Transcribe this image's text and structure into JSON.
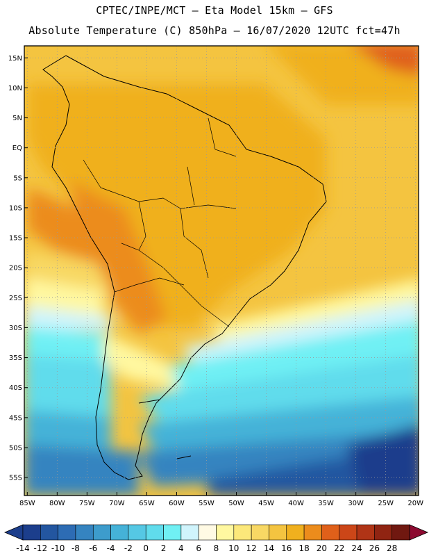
{
  "header": {
    "line1": "CPTEC/INPE/MCT –  Eta Model 15km – GFS",
    "line2": "Absolute Temperature (C) 850hPa – 16/07/2020 12UTC fct=47h"
  },
  "map": {
    "region": "South America",
    "variable": "Absolute Temperature (C) 850hPa",
    "lat_labels": [
      "15N",
      "10N",
      "5N",
      "EQ",
      "5S",
      "10S",
      "15S",
      "20S",
      "25S",
      "30S",
      "35S",
      "40S",
      "45S",
      "50S",
      "55S"
    ],
    "lat_values": [
      15,
      10,
      5,
      0,
      -5,
      -10,
      -15,
      -20,
      -25,
      -30,
      -35,
      -40,
      -45,
      -50,
      -55
    ],
    "lon_labels": [
      "85W",
      "80W",
      "75W",
      "70W",
      "65W",
      "60W",
      "55W",
      "50W",
      "45W",
      "40W",
      "35W",
      "30W",
      "25W",
      "20W"
    ],
    "lon_values": [
      -85,
      -80,
      -75,
      -70,
      -65,
      -60,
      -55,
      -50,
      -45,
      -40,
      -35,
      -30,
      -25,
      -20
    ],
    "lon_range": [
      -85.5,
      -19.5
    ],
    "lat_range": [
      -58,
      17
    ]
  },
  "colorbar": {
    "labels": [
      "-14",
      "-12",
      "-10",
      "-8",
      "-6",
      "-4",
      "-2",
      "0",
      "2",
      "4",
      "6",
      "8",
      "10",
      "12",
      "14",
      "16",
      "18",
      "20",
      "22",
      "24",
      "26",
      "28"
    ],
    "colors": [
      "#5a0a28",
      "#1c3e8c",
      "#2356a0",
      "#2d6cb4",
      "#3584c0",
      "#3d9ccc",
      "#45b2d8",
      "#55c8e4",
      "#60dcec",
      "#70f0f4",
      "#d0f4fc",
      "#fffae4",
      "#fff8a0",
      "#fce87a",
      "#f8d864",
      "#f4c440",
      "#f0b01e",
      "#ec8c1c",
      "#e0601a",
      "#cc4618",
      "#b03416",
      "#902412",
      "#701810",
      "#8c0a30"
    ]
  }
}
